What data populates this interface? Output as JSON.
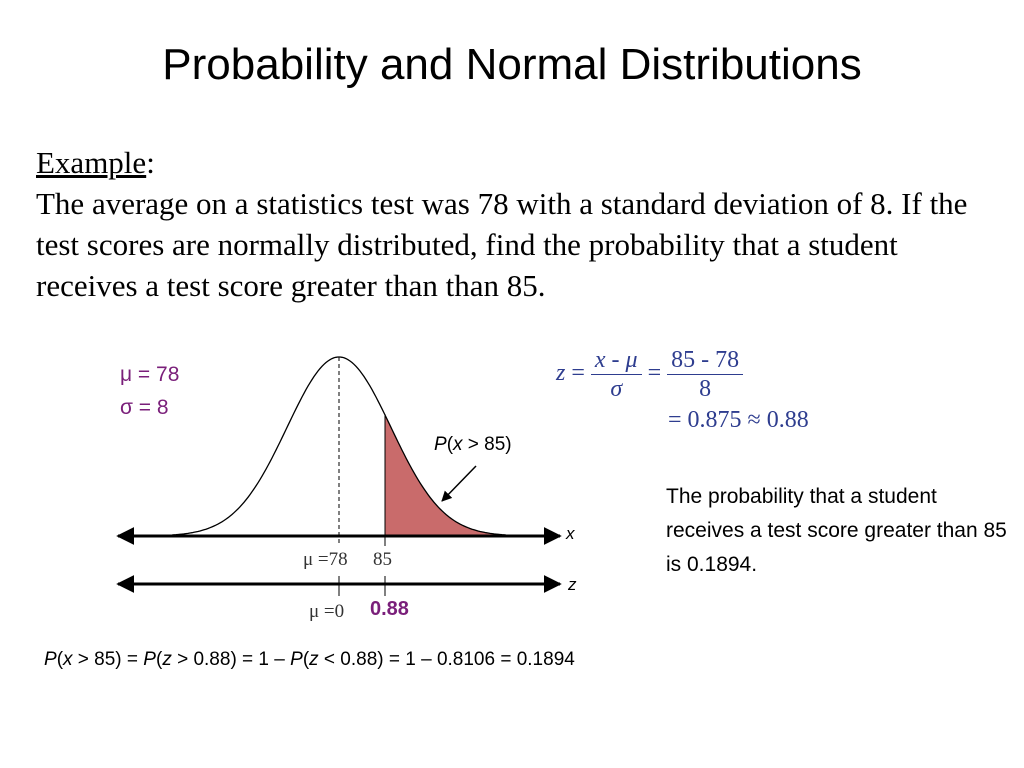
{
  "slide": {
    "title": "Probability and Normal Distributions"
  },
  "problem": {
    "heading": "Example",
    "heading_suffix": ":",
    "text": "The average on a statistics test was 78 with a standard deviation of 8.  If the test scores are normally distributed, find the probability that a student receives a test score greater than than 85."
  },
  "params": {
    "mu": "μ = 78",
    "sigma": "σ = 8"
  },
  "graph": {
    "shaded_label_P": "P",
    "shaded_label_open": "(",
    "shaded_label_var": "x",
    "shaded_label_rest": " > 85)",
    "x_axis_var": "x",
    "z_axis_var": "z",
    "x_mean_label": "μ =78",
    "x_value_label": "85",
    "z_mean_label": "μ =0",
    "z_value_label": "0.88",
    "colors": {
      "shade": "#c96b6b",
      "accent": "#7a1f7a",
      "formula": "#2e3d8f"
    }
  },
  "formula": {
    "z_var": "z",
    "eq": "=",
    "num_x": "x",
    "num_minus": " - ",
    "num_mu": "μ",
    "den_sigma": "σ",
    "eq2": "=",
    "num2": "85 - 78",
    "den2": "8",
    "line2": "= 0.875 ≈ 0.88"
  },
  "conclusion": "The probability that a student receives a test score greater than 85 is 0.1894.",
  "bottom": {
    "p1": "P",
    "a1": "(",
    "x": "x",
    "b1": " > 85) = ",
    "p2": "P",
    "a2": "(",
    "z": "z",
    "b2": " > 0.88) = 1 – ",
    "p3": "P",
    "a3": "(",
    "z2": "z",
    "b3": " < 0.88) = 1 – 0.8106 = 0.1894"
  }
}
